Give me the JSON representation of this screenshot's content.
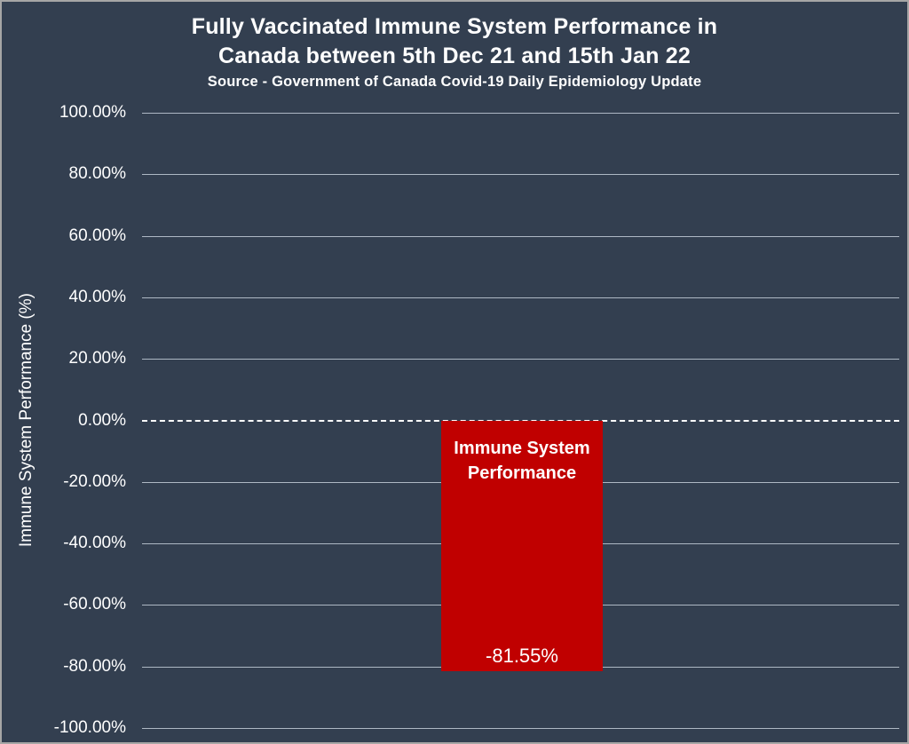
{
  "chart_data": {
    "type": "bar",
    "title_lines": [
      "Fully Vaccinated Immune System Performance in",
      "Canada between 5th Dec 21 and 15th Jan 22"
    ],
    "subtitle": "Source - Government of Canada Covid-19 Daily Epidemiology Update",
    "categories": [
      "Immune System Performance"
    ],
    "values": [
      -81.55
    ],
    "value_labels": [
      "-81.55%"
    ],
    "xlabel": "",
    "ylabel": "Immune System Performance (%)",
    "ylim": [
      -100,
      100
    ],
    "ytick_step": 20,
    "yticks": [
      "100.00%",
      "80.00%",
      "60.00%",
      "40.00%",
      "20.00%",
      "0.00%",
      "-20.00%",
      "-40.00%",
      "-60.00%",
      "-80.00%",
      "-100.00%"
    ],
    "grid": true,
    "legend": false,
    "zero_baseline_style": "dashed",
    "colors": {
      "background": "#333F50",
      "bar": "#C00000",
      "gridline": "#AEB8C4",
      "zero_line": "#FFFFFF",
      "text": "#FFFFFF",
      "border": "#A6A6A6"
    }
  }
}
